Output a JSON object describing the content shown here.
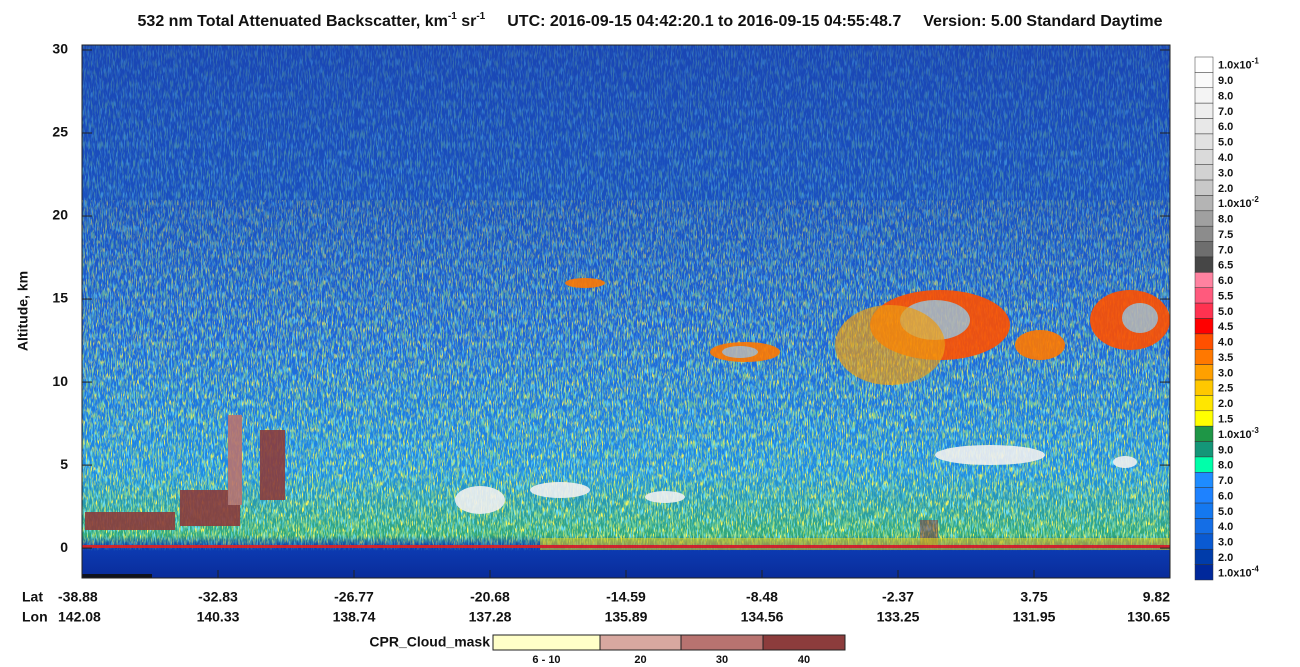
{
  "chart_data": {
    "type": "curtain",
    "title_parts": [
      {
        "text": "532 nm Total Attenuated Backscatter, km"
      },
      {
        "text": "-1",
        "sup": true
      },
      {
        "text": " sr"
      },
      {
        "text": "-1",
        "sup": true
      }
    ],
    "time_range": "UTC:  2016-09-15 04:42:20.1  to  2016-09-15 04:55:48.7",
    "version": "Version: 5.00  Standard  Daytime",
    "ylabel": "Altitude, km",
    "ylim": [
      -1.8,
      30.3
    ],
    "yticks": [
      0,
      5,
      10,
      15,
      20,
      25,
      30
    ],
    "x_rows": {
      "lat_label": "Lat",
      "lon_label": "Lon",
      "lat": [
        -38.88,
        -32.83,
        -26.77,
        -20.68,
        -14.59,
        -8.48,
        -2.37,
        3.75,
        9.82
      ],
      "lon": [
        142.08,
        140.33,
        138.74,
        137.28,
        135.89,
        134.56,
        133.25,
        131.95,
        130.65
      ]
    },
    "colorbar": [
      {
        "label": "1.0x10",
        "sup": "-1",
        "color": "#ffffff"
      },
      {
        "label": "9.0",
        "color": "#fafafa"
      },
      {
        "label": "8.0",
        "color": "#f4f4f4"
      },
      {
        "label": "7.0",
        "color": "#eeeeee"
      },
      {
        "label": "6.0",
        "color": "#e8e8e8"
      },
      {
        "label": "5.0",
        "color": "#e1e1e1"
      },
      {
        "label": "4.0",
        "color": "#dadada"
      },
      {
        "label": "3.0",
        "color": "#d2d2d2"
      },
      {
        "label": "2.0",
        "color": "#c8c8c8"
      },
      {
        "label": "1.0x10",
        "sup": "-2",
        "color": "#b4b4b4"
      },
      {
        "label": "8.0",
        "color": "#a0a0a0"
      },
      {
        "label": "7.5",
        "color": "#8c8c8c"
      },
      {
        "label": "7.0",
        "color": "#6e6e6e"
      },
      {
        "label": "6.5",
        "color": "#464646"
      },
      {
        "label": "6.0",
        "color": "#ff82a0"
      },
      {
        "label": "5.5",
        "color": "#ff5a7d"
      },
      {
        "label": "5.0",
        "color": "#ff3250"
      },
      {
        "label": "4.5",
        "color": "#ff0000"
      },
      {
        "label": "4.0",
        "color": "#ff5000"
      },
      {
        "label": "3.5",
        "color": "#ff7800"
      },
      {
        "label": "3.0",
        "color": "#ffa000"
      },
      {
        "label": "2.5",
        "color": "#ffc800"
      },
      {
        "label": "2.0",
        "color": "#ffe600"
      },
      {
        "label": "1.5",
        "color": "#ffff00"
      },
      {
        "label": "1.0x10",
        "sup": "-3",
        "color": "#1e9646"
      },
      {
        "label": "9.0",
        "color": "#149678"
      },
      {
        "label": "8.0",
        "color": "#00ffaa"
      },
      {
        "label": "7.0",
        "color": "#1e8cff"
      },
      {
        "label": "6.0",
        "color": "#1e82ff"
      },
      {
        "label": "5.0",
        "color": "#1478f0"
      },
      {
        "label": "4.0",
        "color": "#146ee6"
      },
      {
        "label": "3.0",
        "color": "#0a5ad2"
      },
      {
        "label": "2.0",
        "color": "#003caa"
      },
      {
        "label": "1.0x10",
        "sup": "-4",
        "color": "#00289b"
      }
    ],
    "cloud_mask": {
      "title": "CPR_Cloud_mask",
      "items": [
        {
          "label": "6 - 10",
          "color": "#ffffc8"
        },
        {
          "label": "20",
          "color": "#d8a8a0"
        },
        {
          "label": "30",
          "color": "#b87370"
        },
        {
          "label": "40",
          "color": "#8c3c3c"
        }
      ]
    }
  }
}
